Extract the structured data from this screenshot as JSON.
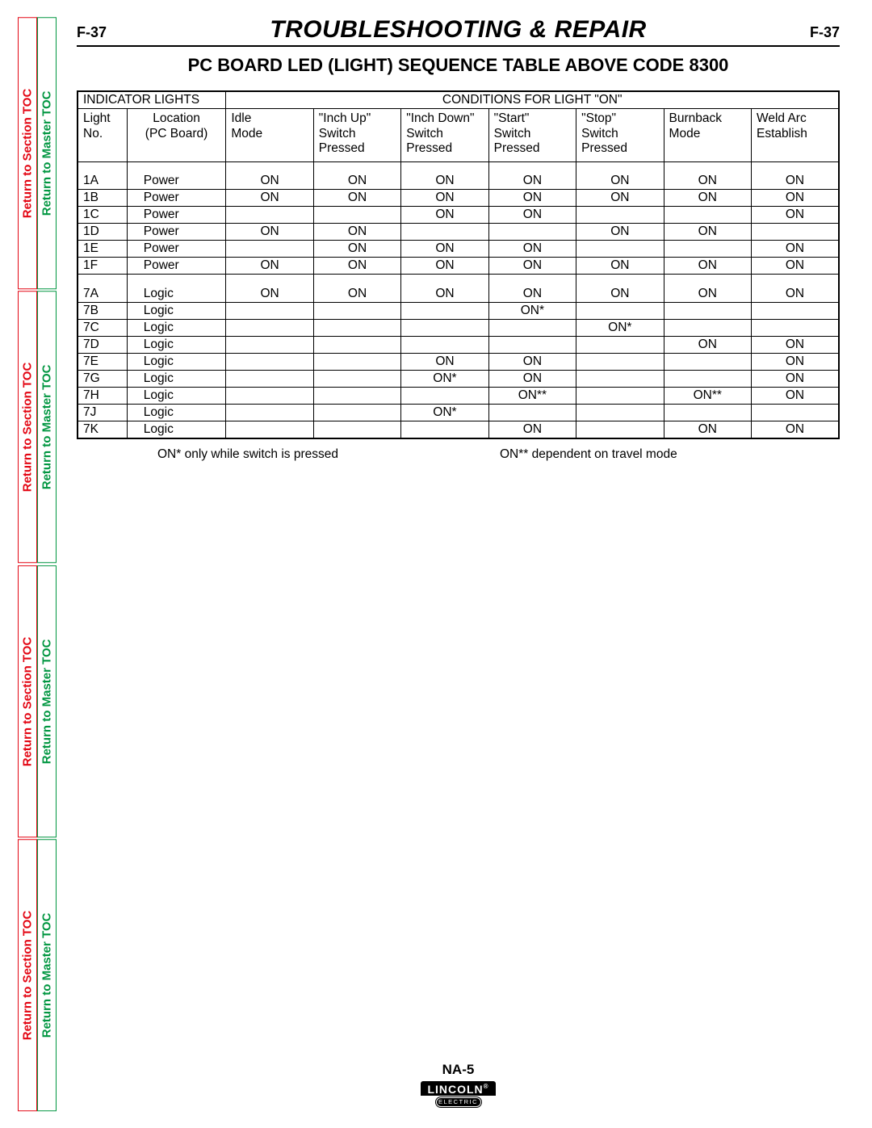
{
  "sideTabs": {
    "red": {
      "label": "Return to Section TOC",
      "color": "#e30613"
    },
    "green": {
      "label": "Return to Master TOC",
      "color": "#009640"
    }
  },
  "header": {
    "pageCodeLeft": "F-37",
    "pageCodeRight": "F-37",
    "title": "TROUBLESHOOTING & REPAIR",
    "subtitle": "PC BOARD LED (LIGHT) SEQUENCE TABLE ABOVE CODE 8300"
  },
  "table": {
    "groupHeaders": {
      "indicator": "INDICATOR LIGHTS",
      "conditions": "CONDITIONS FOR LIGHT \"ON\""
    },
    "columns": [
      {
        "l1": "Light",
        "l2": "No.",
        "l3": ""
      },
      {
        "l1": "Location",
        "l2": "(PC Board)",
        "l3": "",
        "align": "center"
      },
      {
        "l1": "Idle",
        "l2": "Mode",
        "l3": ""
      },
      {
        "l1": "\"Inch Up\"",
        "l2": "Switch",
        "l3": "Pressed"
      },
      {
        "l1": "\"Inch Down\"",
        "l2": "Switch",
        "l3": "Pressed"
      },
      {
        "l1": "\"Start\"",
        "l2": "Switch",
        "l3": "Pressed"
      },
      {
        "l1": "\"Stop\"",
        "l2": "Switch",
        "l3": "Pressed"
      },
      {
        "l1": "Burnback",
        "l2": "Mode",
        "l3": ""
      },
      {
        "l1": "Weld Arc",
        "l2": "Establish",
        "l3": ""
      }
    ],
    "groups": [
      {
        "rows": [
          {
            "cells": [
              "1A",
              "Power",
              "ON",
              "ON",
              "ON",
              "ON",
              "ON",
              "ON",
              "ON"
            ]
          },
          {
            "cells": [
              "1B",
              "Power",
              "ON",
              "ON",
              "ON",
              "ON",
              "ON",
              "ON",
              "ON"
            ]
          },
          {
            "cells": [
              "1C",
              "Power",
              "",
              "",
              "ON",
              "ON",
              "",
              "",
              "ON"
            ]
          },
          {
            "cells": [
              "1D",
              "Power",
              "ON",
              "ON",
              "",
              "",
              "ON",
              "ON",
              ""
            ]
          },
          {
            "cells": [
              "1E",
              "Power",
              "",
              "ON",
              "ON",
              "ON",
              "",
              "",
              "ON"
            ]
          },
          {
            "cells": [
              "1F",
              "Power",
              "ON",
              "ON",
              "ON",
              "ON",
              "ON",
              "ON",
              "ON"
            ]
          }
        ]
      },
      {
        "rows": [
          {
            "cells": [
              "7A",
              "Logic",
              "ON",
              "ON",
              "ON",
              "ON",
              "ON",
              "ON",
              "ON"
            ]
          },
          {
            "cells": [
              "7B",
              "Logic",
              "",
              "",
              "",
              "ON*",
              "",
              "",
              ""
            ]
          },
          {
            "cells": [
              "7C",
              "Logic",
              "",
              "",
              "",
              "",
              "ON*",
              "",
              ""
            ]
          },
          {
            "cells": [
              "7D",
              "Logic",
              "",
              "",
              "",
              "",
              "",
              "ON",
              "ON"
            ]
          },
          {
            "cells": [
              "7E",
              "Logic",
              "",
              "",
              "ON",
              "ON",
              "",
              "",
              "ON"
            ]
          },
          {
            "cells": [
              "7G",
              "Logic",
              "",
              "",
              "ON*",
              "ON",
              "",
              "",
              "ON"
            ]
          },
          {
            "cells": [
              "7H",
              "Logic",
              "",
              "",
              "",
              "ON**",
              "",
              "ON**",
              "ON"
            ]
          },
          {
            "cells": [
              "7J",
              "Logic",
              "",
              "",
              "ON*",
              "",
              "",
              "",
              ""
            ]
          },
          {
            "cells": [
              "7K",
              "Logic",
              "",
              "",
              "",
              "ON",
              "",
              "ON",
              "ON"
            ]
          }
        ]
      }
    ],
    "footnote1": "ON* only while switch is pressed",
    "footnote2": "ON** dependent on travel mode",
    "border_color": "#000000",
    "font_size_pt": 12
  },
  "footer": {
    "model": "NA-5",
    "brand": "LINCOLN",
    "brandSub": "ELECTRIC"
  }
}
